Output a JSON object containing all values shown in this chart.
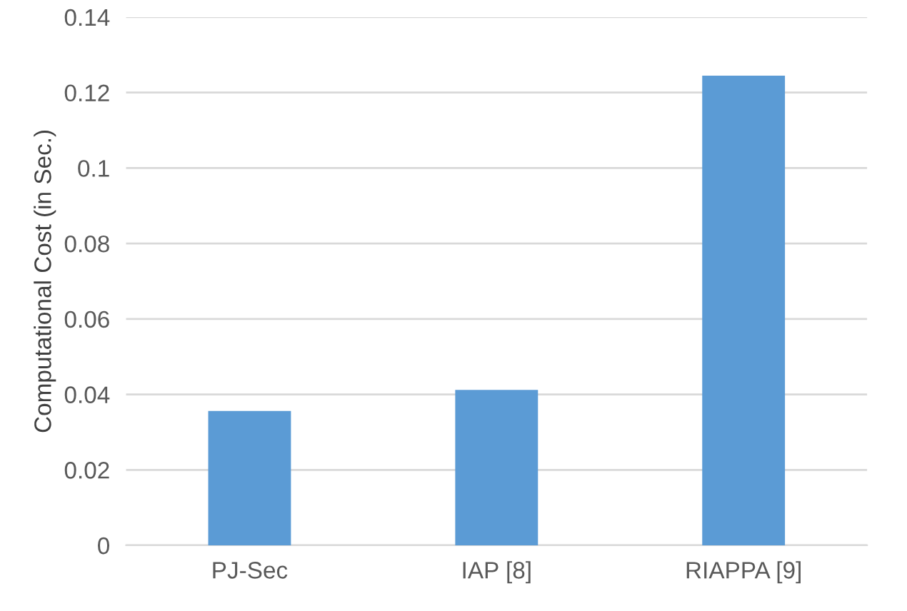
{
  "chart_data": {
    "type": "bar",
    "ylabel": "Computational Cost (in Sec.)",
    "categories": [
      "PJ-Sec",
      "IAP [8]",
      "RIAPPA [9]"
    ],
    "values": [
      0.0356,
      0.0412,
      0.1245
    ],
    "color": "#5b9bd5",
    "ylim": [
      0,
      0.14
    ],
    "yticks": [
      0,
      0.02,
      0.04,
      0.06,
      0.08,
      0.1,
      0.12,
      0.14
    ],
    "grid": "y"
  }
}
